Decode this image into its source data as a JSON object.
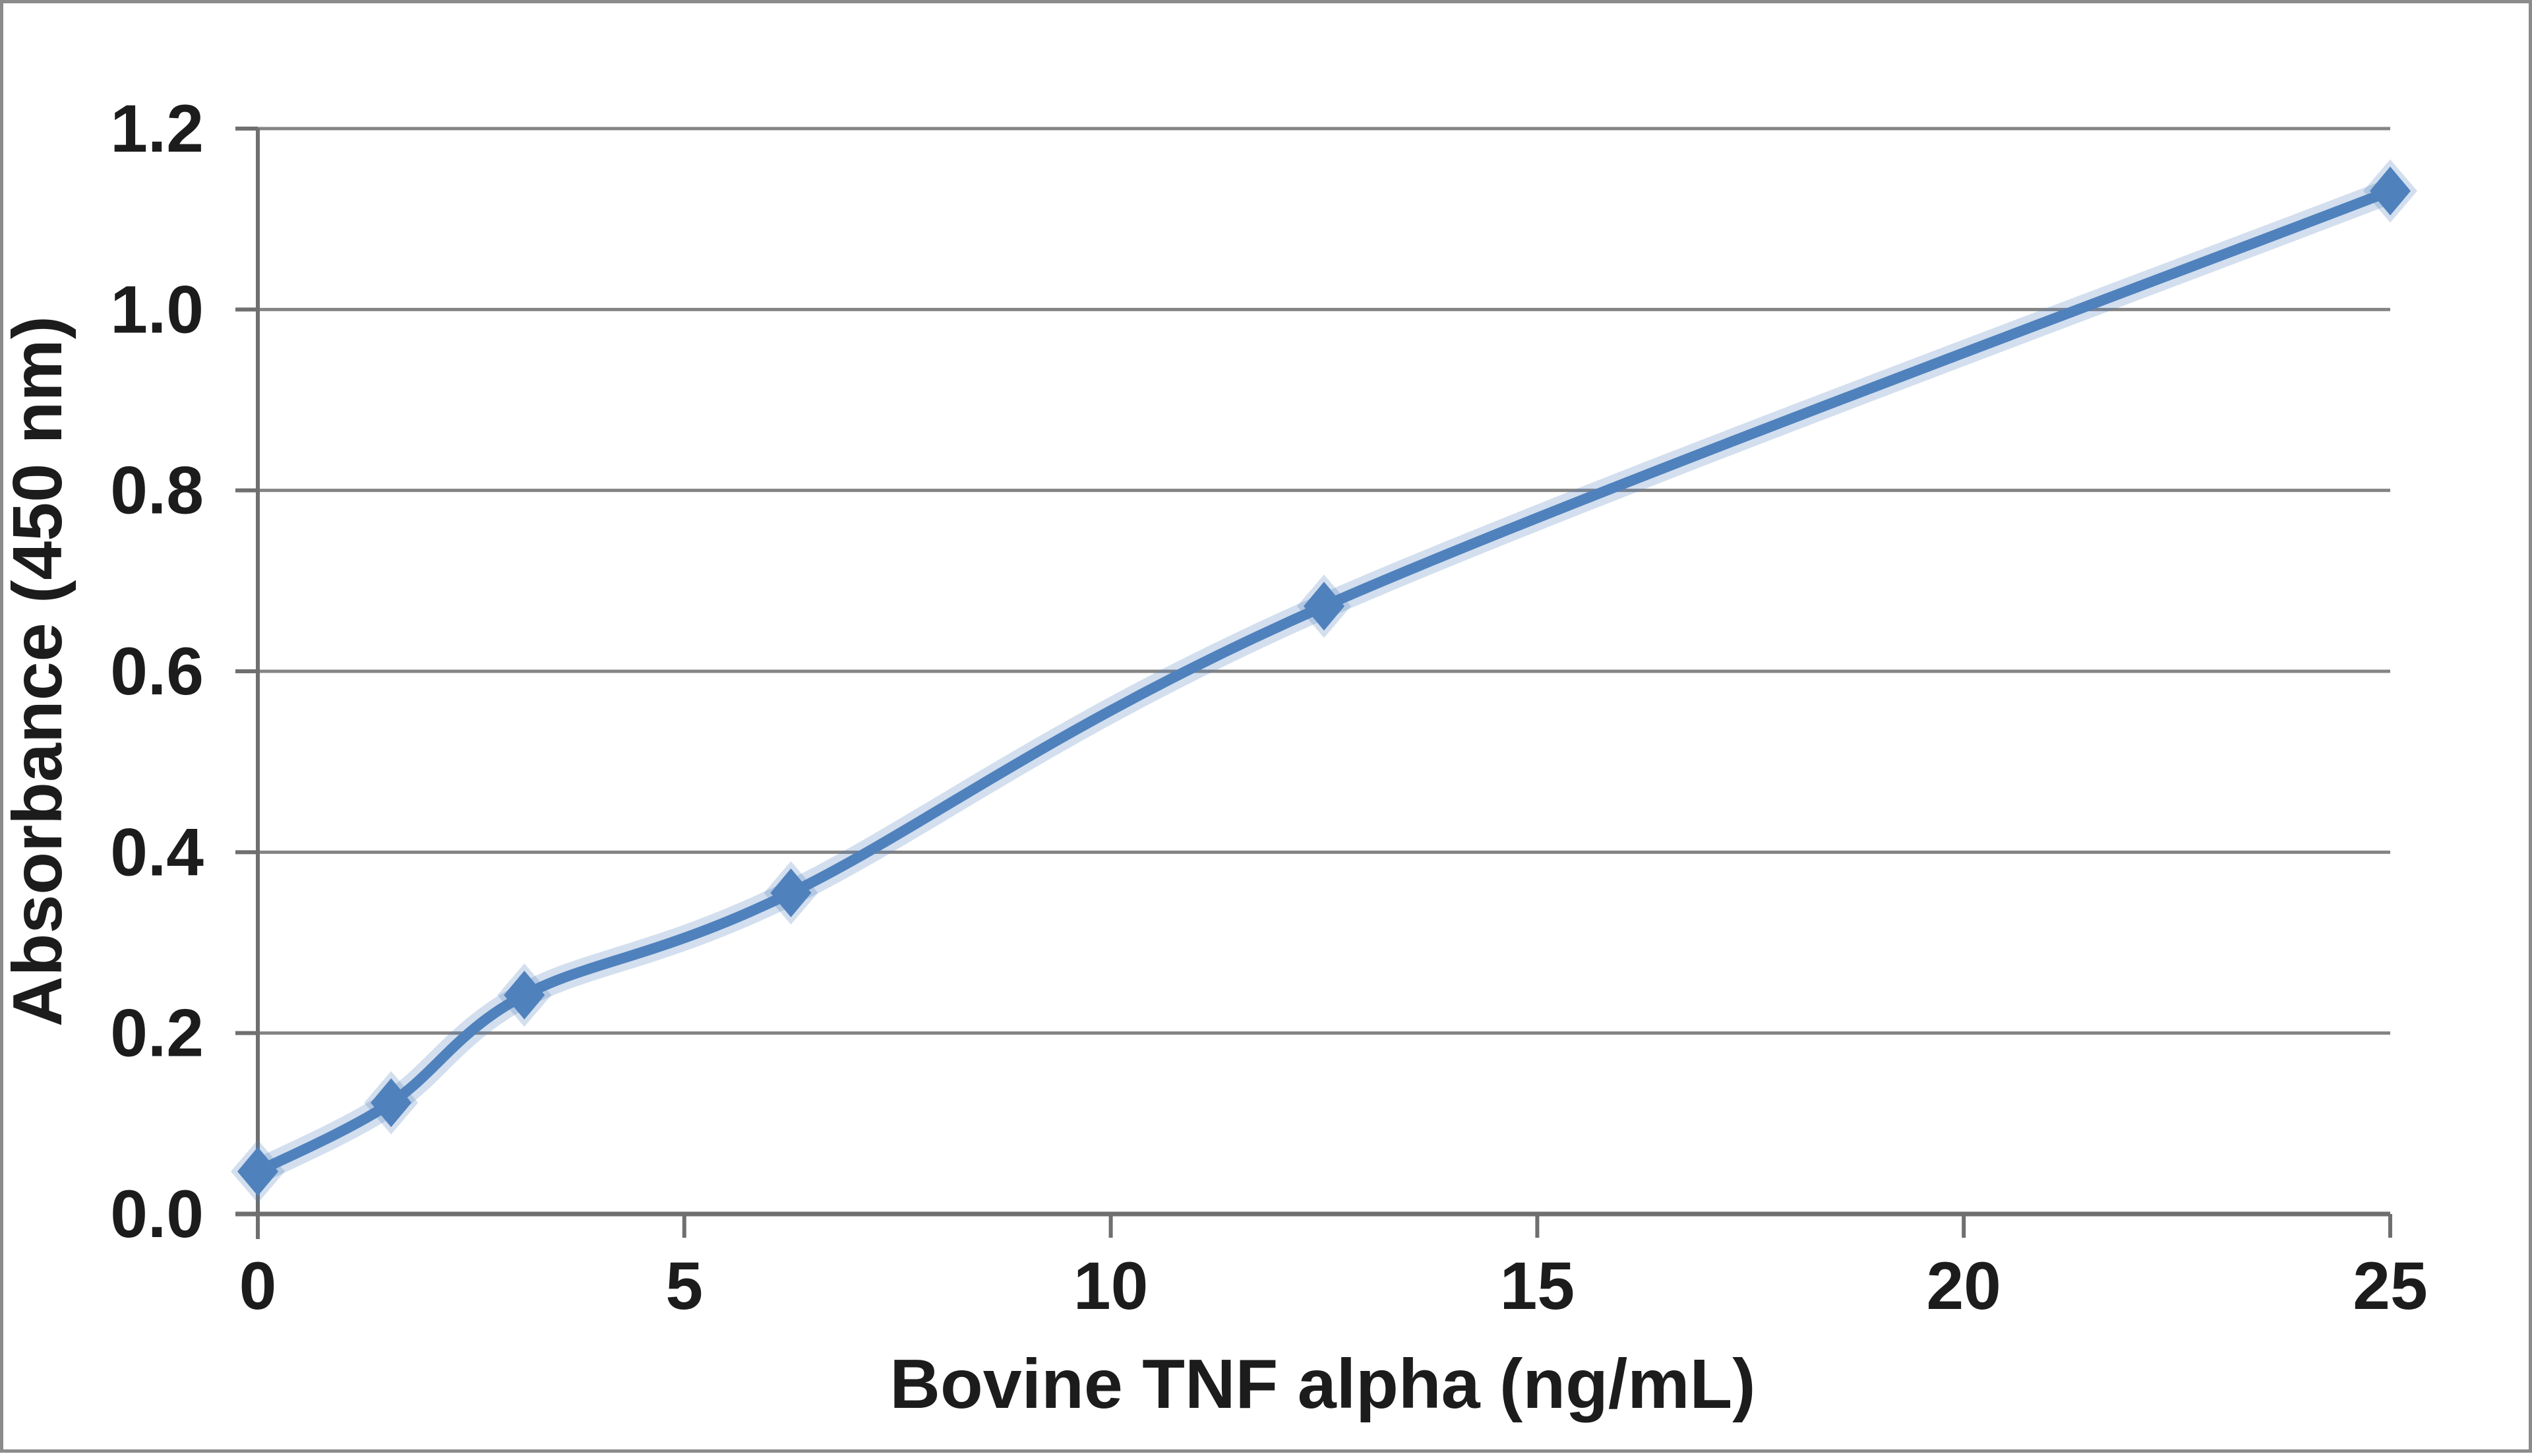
{
  "chart_data": {
    "type": "line",
    "title": "",
    "xlabel": "Bovine TNF alpha (ng/mL)",
    "ylabel": "Absorbance (450 nm)",
    "xlim": [
      0,
      25
    ],
    "ylim": [
      0,
      1.2
    ],
    "x_ticks": [
      0,
      5,
      10,
      15,
      20,
      25
    ],
    "x_tick_labels": [
      "0",
      "5",
      "10",
      "15",
      "20",
      "25"
    ],
    "y_ticks": [
      0,
      0.2,
      0.4,
      0.6,
      0.8,
      1.0,
      1.2
    ],
    "y_tick_labels": [
      "0.0",
      "0.2",
      "0.4",
      "0.6",
      "0.8",
      "1.0",
      "1.2"
    ],
    "grid": "horizontal-only",
    "legend": "none",
    "series": [
      {
        "name": "standard-curve",
        "marker": "diamond",
        "smoothed": true,
        "points": [
          [
            0,
            0.047
          ],
          [
            1.5625,
            0.123
          ],
          [
            3.125,
            0.242
          ],
          [
            6.25,
            0.355
          ],
          [
            12.5,
            0.672
          ],
          [
            25,
            1.131
          ]
        ]
      }
    ],
    "colors": {
      "series": "#4F81BD",
      "series_halo": "rgba(79,129,189,0.25)",
      "gridline": "#848484",
      "axis": "#6f6f6f",
      "text": "#1c1c1c",
      "background": "#ffffff",
      "frame_border": "#8b8b8b"
    }
  }
}
